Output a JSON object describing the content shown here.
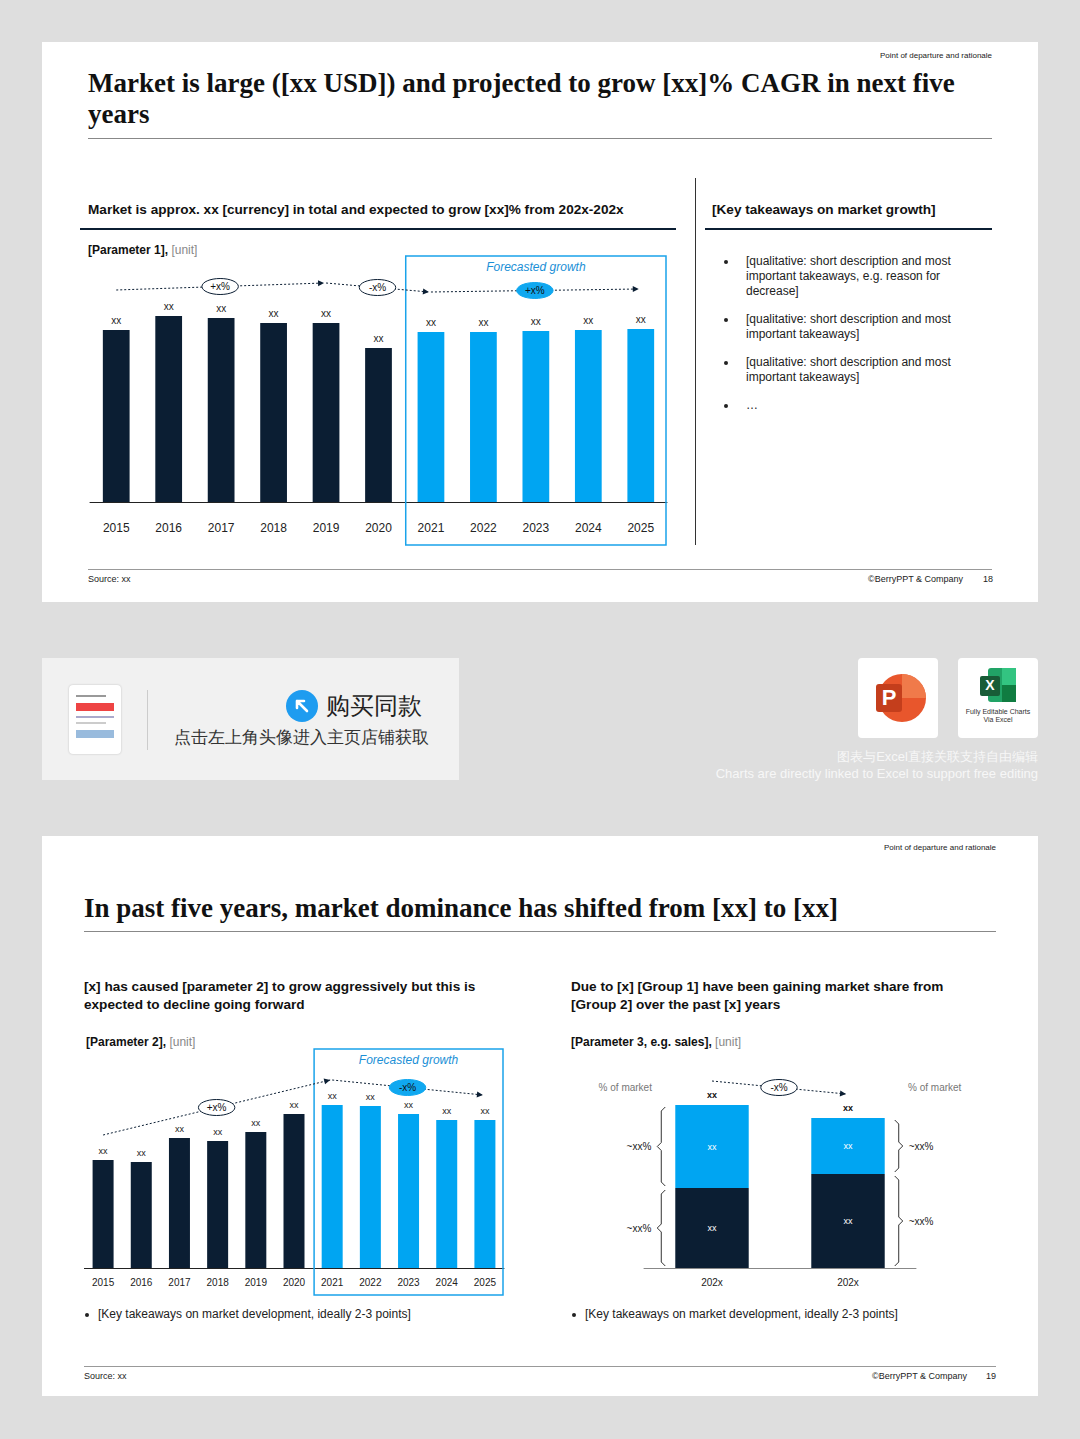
{
  "slides": [
    {
      "tag": "Point of departure and rationale",
      "title": "Market is large ([xx USD]) and projected to grow [xx]% CAGR in next five years",
      "left_heading": "Market is approx. xx [currency] in total and expected to grow [xx]% from 202x-202x",
      "right_heading": "[Key takeaways on market growth]",
      "bullets": [
        "[qualitative: short description and most important takeaways, e.g. reason for decrease]",
        "[qualitative: short description and most important takeaways]",
        "[qualitative: short description and most important takeaways]",
        "…"
      ],
      "source": "Source: xx",
      "copyright": "©BerryPPT & Company",
      "page": "18"
    },
    {
      "tag": "Point of departure and rationale",
      "title": "In past five years, market dominance has shifted from [xx] to [xx]",
      "left_heading": "[x] has caused [parameter 2] to grow aggressively but this is expected to decline going forward",
      "right_heading": "Due to [x] [Group 1] have been gaining market share from [Group 2] over the past [x] years",
      "left_bullet": "[Key takeaways on market development, ideally 2-3 points]",
      "right_bullet": "[Key takeaways on market development, ideally 2-3 points]",
      "source": "Source: xx",
      "copyright": "©BerryPPT & Company",
      "page": "19"
    }
  ],
  "banner": {
    "cta": "购买同款",
    "hint": "点击左上角头像进入主页店铺获取",
    "ppt_letter": "P",
    "excel_letter": "X",
    "excel_caption": "Fully Editable Charts Via Excel",
    "caption_zh": "图表与Excel直接关联支持自由编辑",
    "caption_en": "Charts are directly linked to Excel to support free editing"
  },
  "chart_data": [
    {
      "type": "bar",
      "title": "[Parameter 1],",
      "subtitle": "[unit]",
      "categories": [
        "2015",
        "2016",
        "2017",
        "2018",
        "2019",
        "2020",
        "2021",
        "2022",
        "2023",
        "2024",
        "2025"
      ],
      "values": [
        172,
        186,
        184,
        179,
        179,
        154,
        170,
        170,
        171,
        172,
        173
      ],
      "value_labels": [
        "xx",
        "xx",
        "xx",
        "xx",
        "xx",
        "xx",
        "xx",
        "xx",
        "xx",
        "xx",
        "xx"
      ],
      "colors": [
        "#0b1e33",
        "#0b1e33",
        "#0b1e33",
        "#0b1e33",
        "#0b1e33",
        "#0b1e33",
        "#00a5f2",
        "#00a5f2",
        "#00a5f2",
        "#00a5f2",
        "#00a5f2"
      ],
      "ylim": [
        0,
        230
      ],
      "data_labels": true,
      "tick_labels": "x",
      "grid": false,
      "forecast": {
        "label": "Forecasted growth",
        "from": 6,
        "to": 10
      },
      "annotations": [
        {
          "label": "+x%",
          "from": 0,
          "to": 4
        },
        {
          "label": "-x%",
          "from": 4,
          "to": 6
        },
        {
          "label": "+x%",
          "from": 6,
          "to": 10
        }
      ]
    },
    {
      "type": "bar",
      "title": "[Parameter 2],",
      "subtitle": "[unit]",
      "categories": [
        "2015",
        "2016",
        "2017",
        "2018",
        "2019",
        "2020",
        "2021",
        "2022",
        "2023",
        "2024",
        "2025"
      ],
      "values": [
        108,
        106,
        130,
        127,
        136,
        154,
        163,
        162,
        154,
        148,
        148
      ],
      "value_labels": [
        "xx",
        "xx",
        "xx",
        "xx",
        "xx",
        "xx",
        "xx",
        "xx",
        "xx",
        "xx",
        "xx"
      ],
      "colors": [
        "#0b1e33",
        "#0b1e33",
        "#0b1e33",
        "#0b1e33",
        "#0b1e33",
        "#0b1e33",
        "#00a5f2",
        "#00a5f2",
        "#00a5f2",
        "#00a5f2",
        "#00a5f2"
      ],
      "ylim": [
        0,
        200
      ],
      "data_labels": true,
      "tick_labels": "x",
      "grid": false,
      "forecast": {
        "label": "Forecasted growth",
        "from": 6,
        "to": 10
      },
      "annotations": [
        {
          "label": "+x%",
          "from": 0,
          "to": 6
        },
        {
          "label": "-x%",
          "from": 6,
          "to": 10
        }
      ]
    },
    {
      "type": "bar",
      "title": "[Parameter 3, e.g. sales],",
      "subtitle": "[unit]",
      "stacked": true,
      "categories": [
        "202x",
        "202x"
      ],
      "series": [
        {
          "color": "#0b1e33",
          "values": [
            80,
            94
          ],
          "value_labels": [
            "xx",
            "xx"
          ]
        },
        {
          "color": "#00a5f2",
          "values": [
            83,
            56
          ],
          "value_labels": [
            "xx",
            "xx"
          ]
        }
      ],
      "total_labels": [
        "xx",
        "xx"
      ],
      "side_labels": {
        "title": "% of market",
        "left": [
          "~xx%",
          "~xx%"
        ],
        "right": [
          "~xx%",
          "~xx%"
        ]
      },
      "ylim": [
        0,
        190
      ],
      "data_labels": true,
      "tick_labels": "x",
      "grid": false,
      "annotations": [
        {
          "label": "-x%",
          "from": 0,
          "to": 1
        }
      ]
    }
  ]
}
